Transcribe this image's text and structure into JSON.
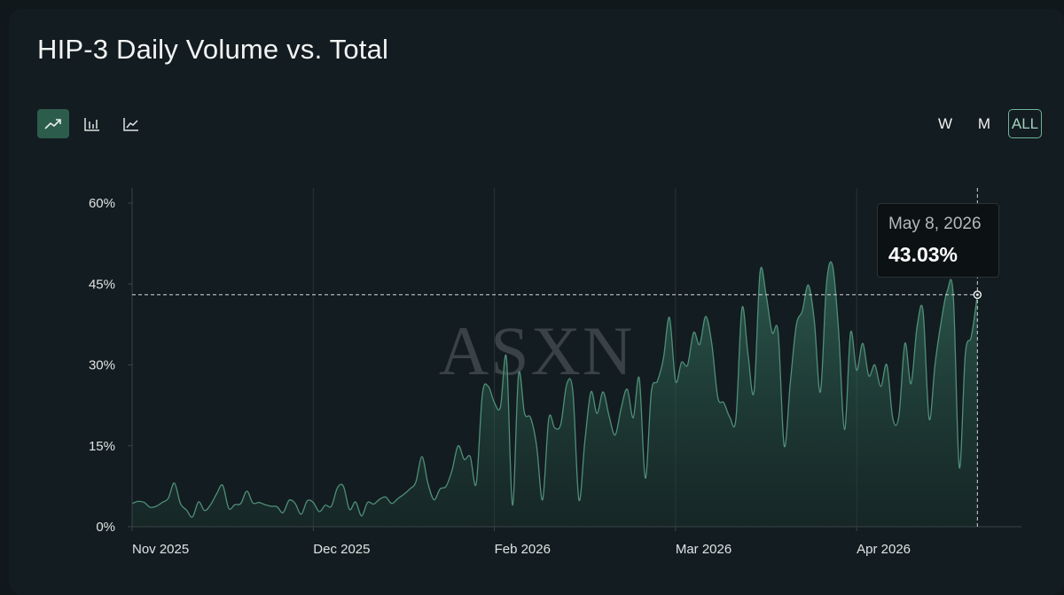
{
  "header": {
    "title": "HIP-3 Daily Volume vs. Total"
  },
  "chart_types": [
    {
      "name": "area",
      "icon": "trend-up-icon",
      "active": true
    },
    {
      "name": "bar",
      "icon": "bar-chart-icon",
      "active": false
    },
    {
      "name": "line",
      "icon": "line-chart-icon",
      "active": false
    }
  ],
  "ranges": [
    {
      "label": "W",
      "active": false
    },
    {
      "label": "M",
      "active": false
    },
    {
      "label": "ALL",
      "active": true
    }
  ],
  "watermark": "ASXN",
  "tooltip": {
    "date": "May 8, 2026",
    "value": "43.03%"
  },
  "colors": {
    "accent": "#3f8a72",
    "line": "#4f8f78",
    "background": "#131c20"
  },
  "chart_data": {
    "type": "area",
    "title": "HIP-3 Daily Volume vs. Total",
    "xlabel": "",
    "ylabel": "",
    "ylim": [
      0,
      0.6
    ],
    "y_ticks": [
      0,
      0.15,
      0.3,
      0.45,
      0.6
    ],
    "y_tick_labels": [
      "0%",
      "15%",
      "30%",
      "45%",
      "60%"
    ],
    "x_tick_labels": [
      "Nov 2025",
      "Dec 2025",
      "Feb 2026",
      "Mar 2026",
      "Apr 2026"
    ],
    "x_tick_positions": [
      0,
      30,
      60,
      90,
      120
    ],
    "x_range": [
      0,
      147
    ],
    "grid": "vertical",
    "series": [
      {
        "values": [
          0.043,
          0.047,
          0.045,
          0.036,
          0.038,
          0.045,
          0.053,
          0.081,
          0.043,
          0.031,
          0.018,
          0.046,
          0.03,
          0.041,
          0.061,
          0.077,
          0.034,
          0.041,
          0.043,
          0.066,
          0.044,
          0.045,
          0.041,
          0.038,
          0.037,
          0.026,
          0.049,
          0.043,
          0.023,
          0.048,
          0.045,
          0.028,
          0.04,
          0.038,
          0.072,
          0.075,
          0.032,
          0.046,
          0.02,
          0.045,
          0.042,
          0.051,
          0.055,
          0.043,
          0.052,
          0.06,
          0.07,
          0.083,
          0.13,
          0.08,
          0.05,
          0.07,
          0.075,
          0.105,
          0.15,
          0.125,
          0.13,
          0.08,
          0.245,
          0.26,
          0.23,
          0.222,
          0.313,
          0.04,
          0.282,
          0.21,
          0.202,
          0.15,
          0.05,
          0.2,
          0.183,
          0.19,
          0.265,
          0.25,
          0.05,
          0.16,
          0.25,
          0.21,
          0.25,
          0.205,
          0.17,
          0.22,
          0.255,
          0.202,
          0.275,
          0.09,
          0.25,
          0.27,
          0.312,
          0.388,
          0.27,
          0.305,
          0.3,
          0.36,
          0.338,
          0.39,
          0.34,
          0.24,
          0.23,
          0.203,
          0.2,
          0.405,
          0.32,
          0.25,
          0.472,
          0.43,
          0.36,
          0.36,
          0.15,
          0.265,
          0.373,
          0.4,
          0.448,
          0.38,
          0.25,
          0.45,
          0.485,
          0.365,
          0.18,
          0.36,
          0.29,
          0.34,
          0.28,
          0.3,
          0.26,
          0.3,
          0.2,
          0.205,
          0.34,
          0.265,
          0.37,
          0.4,
          0.2,
          0.303,
          0.38,
          0.437,
          0.43,
          0.11,
          0.32,
          0.353,
          0.43
        ]
      }
    ]
  }
}
